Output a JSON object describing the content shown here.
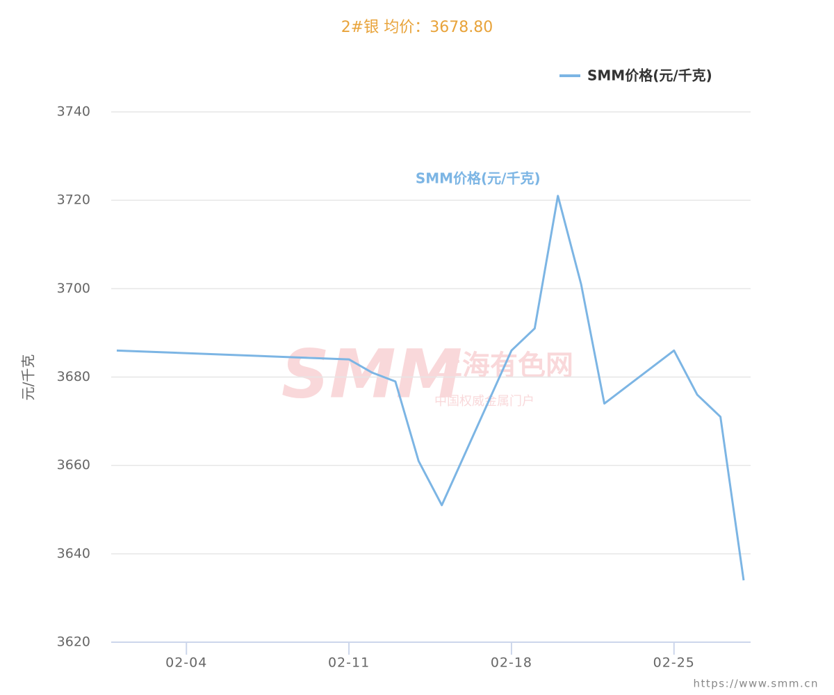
{
  "chart_data": {
    "type": "line",
    "title": "2#银 均价：3678.80",
    "y_label": "元/千克",
    "x": [
      "02-01",
      "02-11",
      "02-12",
      "02-13",
      "02-14",
      "02-15",
      "02-18",
      "02-19",
      "02-20",
      "02-21",
      "02-22",
      "02-25",
      "02-26",
      "02-27",
      "02-28"
    ],
    "series": [
      {
        "name": "SMM价格(元/千克)",
        "color": "#7cb5e4",
        "values": [
          3686,
          3684,
          3681,
          3679,
          3661,
          3651,
          3686,
          3691,
          3721,
          3701,
          3674,
          3686,
          3676,
          3671,
          3634
        ]
      }
    ],
    "xlim": [
      "02-01",
      "02-28"
    ],
    "xticks": [
      "02-04",
      "02-11",
      "02-18",
      "02-25"
    ],
    "ylim": [
      3620,
      3740
    ],
    "yticks": [
      3620,
      3640,
      3660,
      3680,
      3700,
      3720,
      3740
    ],
    "grid": true,
    "legend": "top-right",
    "watermark": {
      "logo": "SMM",
      "name": "上海有色网",
      "slogan": "中国权威金属门户"
    },
    "source": "https://www.smm.cn"
  }
}
